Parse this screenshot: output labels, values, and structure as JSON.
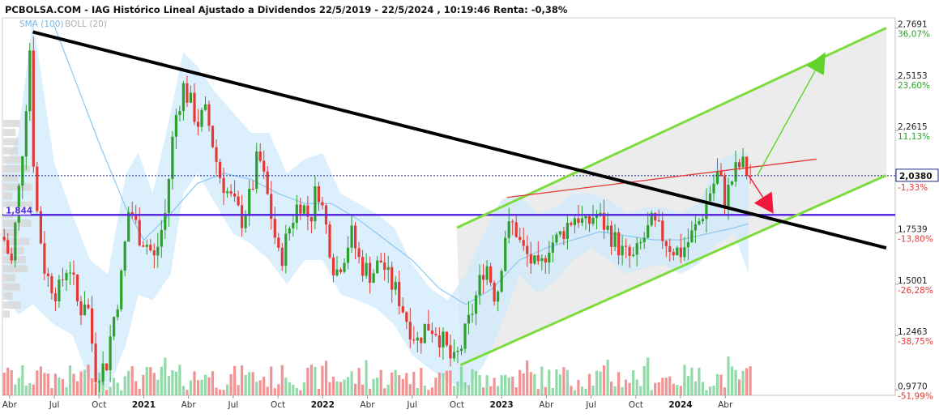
{
  "header": {
    "title": "PCBOLSA.COM - IAG Histórico Lineal Ajustado a Dividendos 22/5/2019 - 22/5/2024 , 10:19:46 Renta: -0,38%"
  },
  "legend": {
    "sma": "SMA (100)",
    "boll": "BOLL (20)"
  },
  "colors": {
    "up": "#2ca02c",
    "down": "#e53935",
    "boll_fill": "#cfe9fb",
    "sma": "#8cc8f0",
    "trend_black": "#000000",
    "channel_green": "#7ddc3c",
    "support_blue": "#5a2de0",
    "resistance_red": "#e53935",
    "volume_up": "#7fd39a",
    "volume_down": "#f08080"
  },
  "chart_data": {
    "type": "candlestick",
    "title": "PCBOLSA.COM - IAG Histórico Lineal Ajustado a Dividendos 22/5/2019 - 22/5/2024 , 10:19:46 Renta: -0,38%",
    "y_ticks": [
      {
        "price": "2,7691",
        "pct": "36,07%",
        "value": 2.7691
      },
      {
        "price": "2,5153",
        "pct": "23,60%",
        "value": 2.5153
      },
      {
        "price": "2,2615",
        "pct": "11,13%",
        "value": 2.2615
      },
      {
        "price": "1,7539",
        "pct": "-13,80%",
        "value": 1.7539
      },
      {
        "price": "1,5001",
        "pct": "-26,28%",
        "value": 1.5001
      },
      {
        "price": "1,2463",
        "pct": "-38,75%",
        "value": 1.2463
      },
      {
        "price": "0,9770",
        "pct": "-51,99%",
        "value": 0.977
      }
    ],
    "current": {
      "price": "2,0380",
      "pct": "-1,33%",
      "value": 2.038
    },
    "support": {
      "label": "1,844",
      "value": 1.844
    },
    "ylim": [
      0.95,
      2.82
    ],
    "x_ticks": [
      {
        "label": "Abr",
        "t": 2020.25,
        "year": false
      },
      {
        "label": "Jul",
        "t": 2020.5,
        "year": false
      },
      {
        "label": "Oct",
        "t": 2020.75,
        "year": false
      },
      {
        "label": "2021",
        "t": 2021.0,
        "year": true
      },
      {
        "label": "Abr",
        "t": 2021.25,
        "year": false
      },
      {
        "label": "Jul",
        "t": 2021.5,
        "year": false
      },
      {
        "label": "Oct",
        "t": 2021.75,
        "year": false
      },
      {
        "label": "2022",
        "t": 2022.0,
        "year": true
      },
      {
        "label": "Abr",
        "t": 2022.25,
        "year": false
      },
      {
        "label": "Jul",
        "t": 2022.5,
        "year": false
      },
      {
        "label": "Oct",
        "t": 2022.75,
        "year": false
      },
      {
        "label": "2023",
        "t": 2023.0,
        "year": true
      },
      {
        "label": "Abr",
        "t": 2023.25,
        "year": false
      },
      {
        "label": "Jul",
        "t": 2023.5,
        "year": false
      },
      {
        "label": "Oct",
        "t": 2023.75,
        "year": false
      },
      {
        "label": "2024",
        "t": 2024.0,
        "year": true
      },
      {
        "label": "Abr",
        "t": 2024.25,
        "year": false
      }
    ],
    "xlim": [
      2020.21,
      2025.2
    ],
    "price_path": [
      [
        2020.21,
        1.75
      ],
      [
        2020.26,
        1.6
      ],
      [
        2020.3,
        1.95
      ],
      [
        2020.34,
        2.35
      ],
      [
        2020.36,
        2.75
      ],
      [
        2020.39,
        1.95
      ],
      [
        2020.45,
        1.55
      ],
      [
        2020.52,
        1.45
      ],
      [
        2020.58,
        1.62
      ],
      [
        2020.64,
        1.36
      ],
      [
        2020.68,
        1.45
      ],
      [
        2020.73,
        1.06
      ],
      [
        2020.79,
        1.1
      ],
      [
        2020.82,
        1.28
      ],
      [
        2020.87,
        1.5
      ],
      [
        2020.92,
        1.9
      ],
      [
        2020.97,
        1.75
      ],
      [
        2021.02,
        1.7
      ],
      [
        2021.06,
        1.62
      ],
      [
        2021.12,
        1.85
      ],
      [
        2021.17,
        2.3
      ],
      [
        2021.22,
        2.48
      ],
      [
        2021.26,
        2.4
      ],
      [
        2021.3,
        2.3
      ],
      [
        2021.35,
        2.35
      ],
      [
        2021.42,
        2.05
      ],
      [
        2021.47,
        1.95
      ],
      [
        2021.55,
        1.82
      ],
      [
        2021.6,
        1.95
      ],
      [
        2021.64,
        2.15
      ],
      [
        2021.7,
        1.9
      ],
      [
        2021.76,
        1.6
      ],
      [
        2021.82,
        1.8
      ],
      [
        2021.87,
        1.92
      ],
      [
        2021.93,
        1.82
      ],
      [
        2021.97,
        2.0
      ],
      [
        2022.02,
        1.78
      ],
      [
        2022.07,
        1.55
      ],
      [
        2022.12,
        1.65
      ],
      [
        2022.16,
        1.75
      ],
      [
        2022.21,
        1.6
      ],
      [
        2022.27,
        1.55
      ],
      [
        2022.33,
        1.62
      ],
      [
        2022.37,
        1.52
      ],
      [
        2022.42,
        1.45
      ],
      [
        2022.48,
        1.3
      ],
      [
        2022.53,
        1.22
      ],
      [
        2022.58,
        1.3
      ],
      [
        2022.63,
        1.28
      ],
      [
        2022.68,
        1.2
      ],
      [
        2022.73,
        1.1
      ],
      [
        2022.77,
        1.18
      ],
      [
        2022.82,
        1.32
      ],
      [
        2022.87,
        1.48
      ],
      [
        2022.91,
        1.62
      ],
      [
        2022.97,
        1.42
      ],
      [
        2023.02,
        1.75
      ],
      [
        2023.07,
        1.8
      ],
      [
        2023.11,
        1.68
      ],
      [
        2023.16,
        1.62
      ],
      [
        2023.21,
        1.55
      ],
      [
        2023.26,
        1.7
      ],
      [
        2023.31,
        1.72
      ],
      [
        2023.37,
        1.8
      ],
      [
        2023.42,
        1.85
      ],
      [
        2023.47,
        1.78
      ],
      [
        2023.52,
        1.85
      ],
      [
        2023.57,
        1.8
      ],
      [
        2023.63,
        1.72
      ],
      [
        2023.68,
        1.65
      ],
      [
        2023.74,
        1.62
      ],
      [
        2023.79,
        1.72
      ],
      [
        2023.84,
        1.8
      ],
      [
        2023.89,
        1.75
      ],
      [
        2023.95,
        1.68
      ],
      [
        2024.0,
        1.66
      ],
      [
        2024.05,
        1.72
      ],
      [
        2024.11,
        1.82
      ],
      [
        2024.16,
        1.95
      ],
      [
        2024.21,
        2.05
      ],
      [
        2024.25,
        1.92
      ],
      [
        2024.3,
        2.05
      ],
      [
        2024.34,
        2.1
      ],
      [
        2024.38,
        2.04
      ]
    ],
    "boll_upper": [
      [
        2020.21,
        2.05
      ],
      [
        2020.3,
        2.25
      ],
      [
        2020.38,
        2.82
      ],
      [
        2020.5,
        2.1
      ],
      [
        2020.6,
        1.85
      ],
      [
        2020.7,
        1.62
      ],
      [
        2020.8,
        1.55
      ],
      [
        2020.9,
        2.05
      ],
      [
        2020.97,
        2.15
      ],
      [
        2021.05,
        1.95
      ],
      [
        2021.15,
        2.35
      ],
      [
        2021.22,
        2.65
      ],
      [
        2021.3,
        2.58
      ],
      [
        2021.4,
        2.45
      ],
      [
        2021.5,
        2.35
      ],
      [
        2021.6,
        2.25
      ],
      [
        2021.7,
        2.25
      ],
      [
        2021.8,
        2.05
      ],
      [
        2021.9,
        2.12
      ],
      [
        2022.0,
        2.15
      ],
      [
        2022.1,
        1.95
      ],
      [
        2022.2,
        1.9
      ],
      [
        2022.3,
        1.85
      ],
      [
        2022.4,
        1.78
      ],
      [
        2022.5,
        1.6
      ],
      [
        2022.6,
        1.48
      ],
      [
        2022.7,
        1.42
      ],
      [
        2022.8,
        1.55
      ],
      [
        2022.9,
        1.75
      ],
      [
        2023.0,
        1.92
      ],
      [
        2023.1,
        1.95
      ],
      [
        2023.2,
        1.85
      ],
      [
        2023.3,
        1.88
      ],
      [
        2023.4,
        1.95
      ],
      [
        2023.5,
        1.95
      ],
      [
        2023.6,
        1.92
      ],
      [
        2023.7,
        1.85
      ],
      [
        2023.8,
        1.88
      ],
      [
        2023.9,
        1.88
      ],
      [
        2024.0,
        1.85
      ],
      [
        2024.1,
        1.9
      ],
      [
        2024.2,
        2.1
      ],
      [
        2024.3,
        2.15
      ],
      [
        2024.38,
        2.15
      ]
    ],
    "boll_lower": [
      [
        2020.21,
        1.45
      ],
      [
        2020.3,
        1.35
      ],
      [
        2020.38,
        1.4
      ],
      [
        2020.5,
        1.3
      ],
      [
        2020.6,
        1.25
      ],
      [
        2020.7,
        1.02
      ],
      [
        2020.8,
        0.98
      ],
      [
        2020.9,
        1.2
      ],
      [
        2020.97,
        1.45
      ],
      [
        2021.05,
        1.42
      ],
      [
        2021.15,
        1.55
      ],
      [
        2021.22,
        1.95
      ],
      [
        2021.3,
        2.05
      ],
      [
        2021.4,
        1.9
      ],
      [
        2021.5,
        1.75
      ],
      [
        2021.6,
        1.7
      ],
      [
        2021.7,
        1.62
      ],
      [
        2021.8,
        1.5
      ],
      [
        2021.9,
        1.62
      ],
      [
        2022.0,
        1.62
      ],
      [
        2022.1,
        1.45
      ],
      [
        2022.2,
        1.42
      ],
      [
        2022.3,
        1.38
      ],
      [
        2022.4,
        1.3
      ],
      [
        2022.5,
        1.15
      ],
      [
        2022.6,
        1.08
      ],
      [
        2022.7,
        1.02
      ],
      [
        2022.8,
        0.98
      ],
      [
        2022.9,
        1.1
      ],
      [
        2023.0,
        1.3
      ],
      [
        2023.1,
        1.55
      ],
      [
        2023.2,
        1.45
      ],
      [
        2023.3,
        1.52
      ],
      [
        2023.4,
        1.62
      ],
      [
        2023.5,
        1.68
      ],
      [
        2023.6,
        1.62
      ],
      [
        2023.7,
        1.55
      ],
      [
        2023.8,
        1.58
      ],
      [
        2023.9,
        1.6
      ],
      [
        2024.0,
        1.55
      ],
      [
        2024.1,
        1.6
      ],
      [
        2024.2,
        1.7
      ],
      [
        2024.3,
        1.75
      ],
      [
        2024.38,
        1.55
      ]
    ],
    "sma": [
      [
        2020.5,
        2.78
      ],
      [
        2020.6,
        2.55
      ],
      [
        2020.75,
        2.2
      ],
      [
        2020.9,
        1.88
      ],
      [
        2021.0,
        1.72
      ],
      [
        2021.15,
        1.85
      ],
      [
        2021.3,
        2.0
      ],
      [
        2021.45,
        2.05
      ],
      [
        2021.6,
        2.02
      ],
      [
        2021.75,
        1.95
      ],
      [
        2021.9,
        1.9
      ],
      [
        2022.05,
        1.9
      ],
      [
        2022.2,
        1.82
      ],
      [
        2022.35,
        1.72
      ],
      [
        2022.5,
        1.62
      ],
      [
        2022.65,
        1.48
      ],
      [
        2022.8,
        1.4
      ],
      [
        2022.95,
        1.48
      ],
      [
        2023.1,
        1.62
      ],
      [
        2023.25,
        1.68
      ],
      [
        2023.4,
        1.72
      ],
      [
        2023.55,
        1.76
      ],
      [
        2023.7,
        1.74
      ],
      [
        2023.85,
        1.72
      ],
      [
        2024.0,
        1.72
      ],
      [
        2024.15,
        1.75
      ],
      [
        2024.3,
        1.78
      ],
      [
        2024.38,
        1.8
      ]
    ],
    "lines": {
      "black_trend": [
        [
          2020.38,
          2.75
        ],
        [
          2025.15,
          1.68
        ]
      ],
      "channel_upper": [
        [
          2022.75,
          1.78
        ],
        [
          2025.15,
          2.77
        ]
      ],
      "channel_lower": [
        [
          2022.77,
          1.1
        ],
        [
          2025.15,
          2.04
        ]
      ],
      "red_resistance": [
        [
          2023.03,
          1.93
        ],
        [
          2024.76,
          2.12
        ]
      ]
    },
    "arrows": {
      "green_up": [
        [
          2024.43,
          2.04
        ],
        [
          2024.81,
          2.65
        ]
      ],
      "red_down": [
        [
          2024.38,
          2.04
        ],
        [
          2024.52,
          1.85
        ]
      ]
    }
  }
}
